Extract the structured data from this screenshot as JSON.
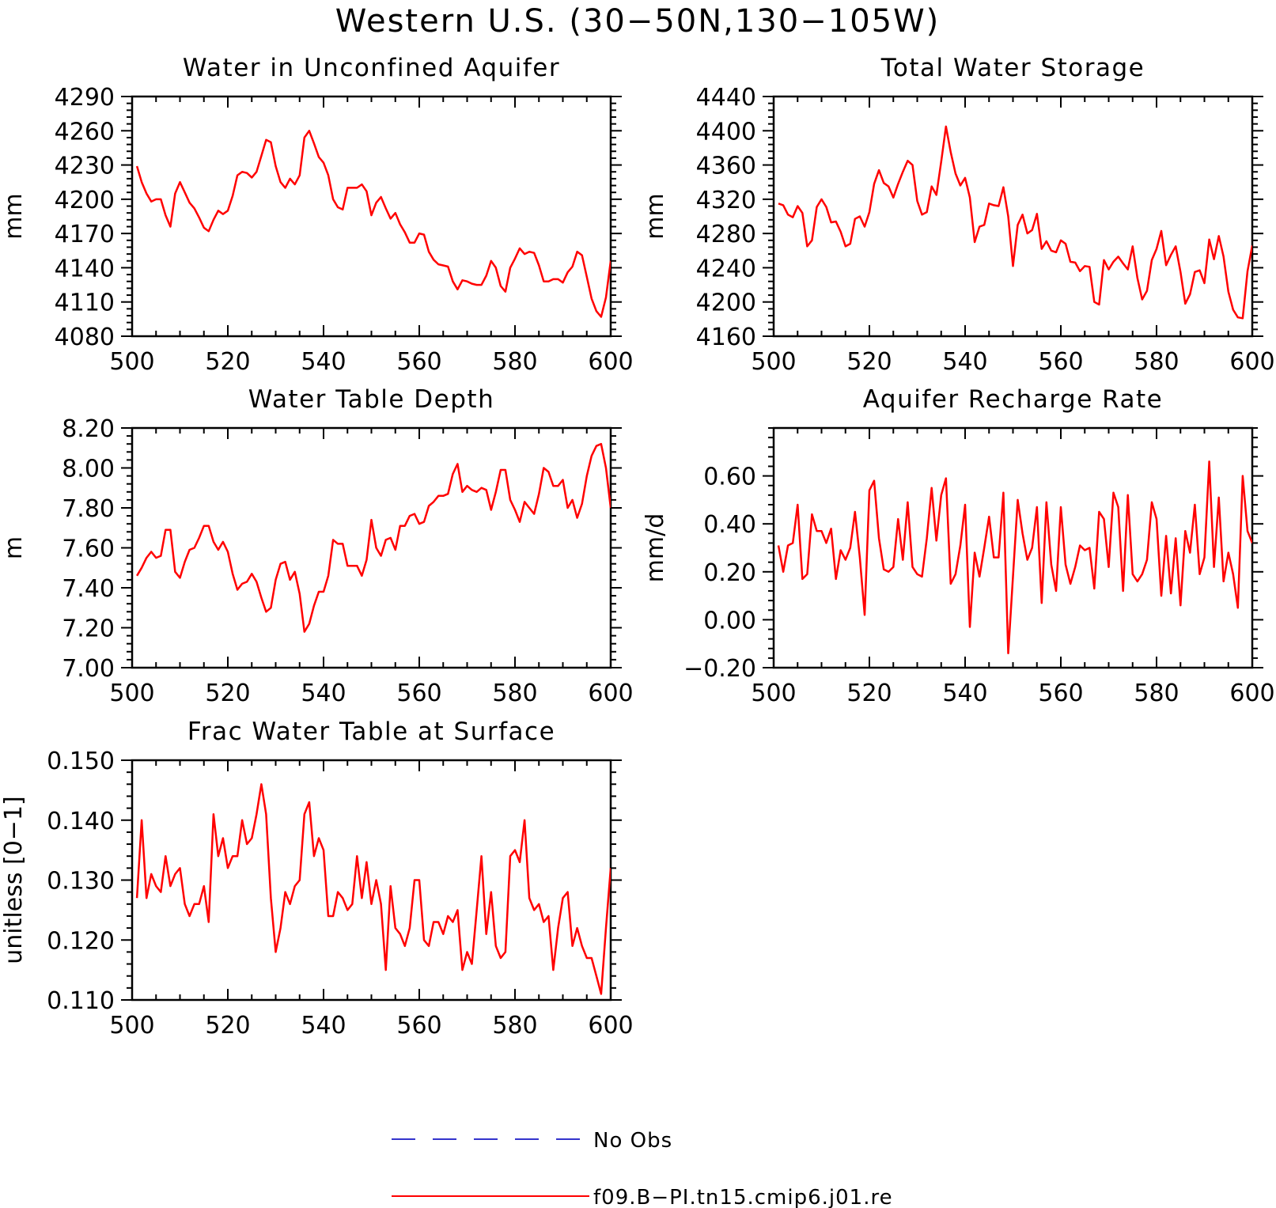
{
  "figure": {
    "title": "Western U.S. (30−50N,130−105W)"
  },
  "legend": {
    "items": [
      {
        "label": "No Obs",
        "color": "#3333cc",
        "style": "dashed"
      },
      {
        "label": "f09.B−PI.tn15.cmip6.j01.re",
        "color": "#ff0000",
        "style": "solid"
      }
    ]
  },
  "colors": {
    "series": "#ff0000",
    "obs": "#3333cc",
    "axis": "#000000"
  },
  "chart_data": [
    {
      "type": "line",
      "title": "Water in Unconfined Aquifer",
      "ylabel": "mm",
      "xlabel": "",
      "xlim": [
        500,
        600
      ],
      "ylim": [
        4080,
        4290
      ],
      "xticks": [
        500,
        520,
        540,
        560,
        580,
        600
      ],
      "xtick_labels": [
        "500",
        "520",
        "540",
        "560",
        "580",
        "600"
      ],
      "yticks": [
        4080,
        4110,
        4140,
        4170,
        4200,
        4230,
        4260,
        4290
      ],
      "ytick_labels": [
        "4080",
        "4110",
        "4140",
        "4170",
        "4200",
        "4230",
        "4260",
        "4290"
      ],
      "x_start": 501,
      "series": [
        {
          "color": "#ff0000",
          "values": [
            4229,
            4215,
            4205,
            4198,
            4200,
            4200,
            4186,
            4176,
            4205,
            4215,
            4206,
            4197,
            4192,
            4184,
            4175,
            4172,
            4182,
            4190,
            4187,
            4190,
            4203,
            4221,
            4224,
            4223,
            4219,
            4224,
            4238,
            4252,
            4250,
            4229,
            4215,
            4210,
            4218,
            4213,
            4221,
            4254,
            4260,
            4249,
            4237,
            4232,
            4221,
            4200,
            4193,
            4191,
            4210,
            4210,
            4210,
            4213,
            4207,
            4186,
            4197,
            4202,
            4192,
            4183,
            4188,
            4178,
            4171,
            4162,
            4162,
            4170,
            4169,
            4154,
            4147,
            4143,
            4142,
            4141,
            4128,
            4121,
            4129,
            4128,
            4126,
            4125,
            4125,
            4133,
            4146,
            4140,
            4124,
            4119,
            4140,
            4148,
            4157,
            4152,
            4154,
            4153,
            4142,
            4128,
            4128,
            4130,
            4130,
            4127,
            4136,
            4141,
            4154,
            4151,
            4132,
            4113,
            4102,
            4097,
            4114,
            4146
          ]
        }
      ]
    },
    {
      "type": "line",
      "title": "Total Water Storage",
      "ylabel": "mm",
      "xlabel": "",
      "xlim": [
        500,
        600
      ],
      "ylim": [
        4160,
        4440
      ],
      "xticks": [
        500,
        520,
        540,
        560,
        580,
        600
      ],
      "xtick_labels": [
        "500",
        "520",
        "540",
        "560",
        "580",
        "600"
      ],
      "yticks": [
        4160,
        4200,
        4240,
        4280,
        4320,
        4360,
        4400,
        4440
      ],
      "ytick_labels": [
        "4160",
        "4200",
        "4240",
        "4280",
        "4320",
        "4360",
        "4400",
        "4440"
      ],
      "x_start": 501,
      "series": [
        {
          "color": "#ff0000",
          "values": [
            4315,
            4313,
            4302,
            4299,
            4312,
            4304,
            4265,
            4272,
            4311,
            4320,
            4311,
            4293,
            4294,
            4282,
            4265,
            4268,
            4297,
            4300,
            4288,
            4305,
            4338,
            4354,
            4339,
            4335,
            4322,
            4338,
            4352,
            4365,
            4360,
            4318,
            4302,
            4305,
            4335,
            4325,
            4364,
            4405,
            4375,
            4350,
            4336,
            4345,
            4322,
            4270,
            4288,
            4290,
            4315,
            4313,
            4312,
            4334,
            4300,
            4242,
            4290,
            4302,
            4280,
            4284,
            4303,
            4262,
            4271,
            4260,
            4258,
            4272,
            4268,
            4247,
            4246,
            4236,
            4242,
            4241,
            4200,
            4197,
            4249,
            4238,
            4247,
            4253,
            4245,
            4238,
            4265,
            4228,
            4203,
            4213,
            4249,
            4262,
            4283,
            4243,
            4255,
            4265,
            4235,
            4198,
            4209,
            4235,
            4237,
            4222,
            4273,
            4250,
            4277,
            4253,
            4212,
            4191,
            4182,
            4181,
            4236,
            4266
          ]
        }
      ]
    },
    {
      "type": "line",
      "title": "Water Table Depth",
      "ylabel": "m",
      "xlabel": "",
      "xlim": [
        500,
        600
      ],
      "ylim": [
        7.0,
        8.2
      ],
      "xticks": [
        500,
        520,
        540,
        560,
        580,
        600
      ],
      "xtick_labels": [
        "500",
        "520",
        "540",
        "560",
        "580",
        "600"
      ],
      "yticks": [
        7.0,
        7.2,
        7.4,
        7.6,
        7.8,
        8.0,
        8.2
      ],
      "ytick_labels": [
        "7.00",
        "7.20",
        "7.40",
        "7.60",
        "7.80",
        "8.00",
        "8.20"
      ],
      "x_start": 501,
      "series": [
        {
          "color": "#ff0000",
          "values": [
            7.46,
            7.5,
            7.55,
            7.58,
            7.55,
            7.56,
            7.69,
            7.69,
            7.48,
            7.45,
            7.53,
            7.59,
            7.6,
            7.65,
            7.71,
            7.71,
            7.63,
            7.59,
            7.63,
            7.58,
            7.47,
            7.39,
            7.42,
            7.43,
            7.47,
            7.43,
            7.35,
            7.28,
            7.3,
            7.44,
            7.52,
            7.53,
            7.44,
            7.48,
            7.37,
            7.18,
            7.22,
            7.31,
            7.38,
            7.38,
            7.46,
            7.64,
            7.62,
            7.62,
            7.51,
            7.51,
            7.51,
            7.46,
            7.54,
            7.74,
            7.6,
            7.56,
            7.64,
            7.65,
            7.59,
            7.71,
            7.71,
            7.76,
            7.77,
            7.72,
            7.73,
            7.81,
            7.83,
            7.86,
            7.86,
            7.87,
            7.97,
            8.02,
            7.88,
            7.91,
            7.89,
            7.88,
            7.9,
            7.89,
            7.79,
            7.88,
            7.99,
            7.99,
            7.84,
            7.79,
            7.73,
            7.83,
            7.8,
            7.77,
            7.87,
            8.0,
            7.98,
            7.91,
            7.91,
            7.94,
            7.8,
            7.84,
            7.75,
            7.82,
            7.96,
            8.06,
            8.11,
            8.12,
            8.0,
            7.8
          ]
        }
      ]
    },
    {
      "type": "line",
      "title": "Aquifer Recharge Rate",
      "ylabel": "mm/d",
      "xlabel": "",
      "xlim": [
        500,
        600
      ],
      "ylim": [
        -0.2,
        0.8
      ],
      "xticks": [
        500,
        520,
        540,
        560,
        580,
        600
      ],
      "xtick_labels": [
        "500",
        "520",
        "540",
        "560",
        "580",
        "600"
      ],
      "yticks": [
        -0.2,
        0.0,
        0.2,
        0.4,
        0.6
      ],
      "ytick_labels": [
        "−0.20",
        "0.00",
        "0.20",
        "0.40",
        "0.60"
      ],
      "x_start": 501,
      "series": [
        {
          "color": "#ff0000",
          "values": [
            0.31,
            0.2,
            0.31,
            0.32,
            0.48,
            0.17,
            0.19,
            0.44,
            0.37,
            0.37,
            0.32,
            0.38,
            0.17,
            0.29,
            0.25,
            0.3,
            0.45,
            0.26,
            0.02,
            0.54,
            0.58,
            0.34,
            0.21,
            0.2,
            0.22,
            0.42,
            0.25,
            0.49,
            0.22,
            0.19,
            0.18,
            0.34,
            0.55,
            0.33,
            0.52,
            0.59,
            0.15,
            0.19,
            0.31,
            0.48,
            -0.03,
            0.28,
            0.18,
            0.3,
            0.43,
            0.26,
            0.26,
            0.53,
            -0.14,
            0.18,
            0.5,
            0.36,
            0.25,
            0.3,
            0.47,
            0.07,
            0.49,
            0.23,
            0.12,
            0.47,
            0.23,
            0.15,
            0.22,
            0.31,
            0.29,
            0.3,
            0.13,
            0.45,
            0.42,
            0.22,
            0.53,
            0.47,
            0.12,
            0.52,
            0.19,
            0.16,
            0.19,
            0.25,
            0.49,
            0.42,
            0.1,
            0.35,
            0.11,
            0.34,
            0.06,
            0.37,
            0.28,
            0.48,
            0.19,
            0.26,
            0.66,
            0.22,
            0.51,
            0.16,
            0.28,
            0.19,
            0.05,
            0.6,
            0.37,
            0.32
          ]
        }
      ]
    },
    {
      "type": "line",
      "title": "Frac Water Table at Surface",
      "ylabel": "unitless [0−1]",
      "xlabel": "",
      "xlim": [
        500,
        600
      ],
      "ylim": [
        0.11,
        0.15
      ],
      "xticks": [
        500,
        520,
        540,
        560,
        580,
        600
      ],
      "xtick_labels": [
        "500",
        "520",
        "540",
        "560",
        "580",
        "600"
      ],
      "yticks": [
        0.11,
        0.12,
        0.13,
        0.14,
        0.15
      ],
      "ytick_labels": [
        "0.110",
        "0.120",
        "0.130",
        "0.140",
        "0.150"
      ],
      "x_start": 501,
      "series": [
        {
          "color": "#ff0000",
          "values": [
            0.127,
            0.14,
            0.127,
            0.131,
            0.129,
            0.128,
            0.134,
            0.129,
            0.131,
            0.132,
            0.126,
            0.124,
            0.126,
            0.126,
            0.129,
            0.123,
            0.141,
            0.134,
            0.137,
            0.132,
            0.134,
            0.134,
            0.14,
            0.136,
            0.137,
            0.141,
            0.146,
            0.141,
            0.127,
            0.118,
            0.122,
            0.128,
            0.126,
            0.129,
            0.13,
            0.141,
            0.143,
            0.134,
            0.137,
            0.135,
            0.124,
            0.124,
            0.128,
            0.127,
            0.125,
            0.126,
            0.134,
            0.127,
            0.133,
            0.126,
            0.13,
            0.126,
            0.115,
            0.129,
            0.122,
            0.121,
            0.119,
            0.122,
            0.13,
            0.13,
            0.12,
            0.119,
            0.123,
            0.123,
            0.121,
            0.124,
            0.123,
            0.125,
            0.115,
            0.118,
            0.116,
            0.125,
            0.134,
            0.121,
            0.128,
            0.119,
            0.117,
            0.118,
            0.134,
            0.135,
            0.133,
            0.14,
            0.127,
            0.125,
            0.126,
            0.123,
            0.124,
            0.115,
            0.122,
            0.127,
            0.128,
            0.119,
            0.122,
            0.119,
            0.117,
            0.117,
            0.114,
            0.111,
            0.122,
            0.132
          ]
        }
      ]
    }
  ]
}
